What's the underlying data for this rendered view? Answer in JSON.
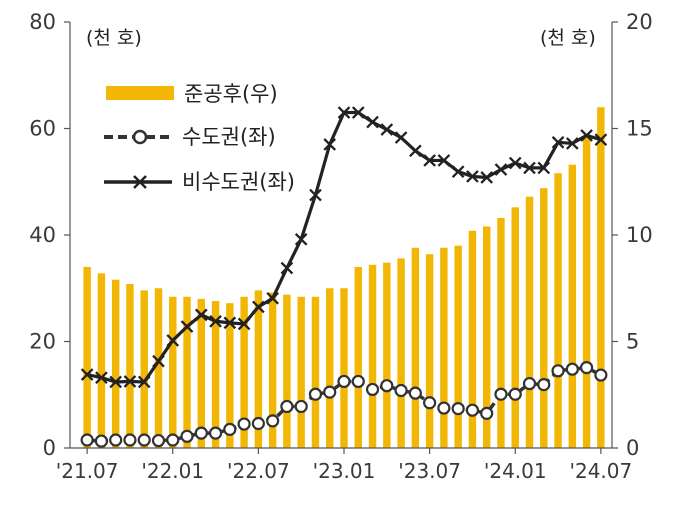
{
  "chart_data": {
    "type": "bar+line",
    "unit_left": "(천 호)",
    "unit_right": "(천 호)",
    "x": [
      "'21.07",
      "'21.08",
      "'21.09",
      "'21.10",
      "'21.11",
      "'21.12",
      "'22.01",
      "'22.02",
      "'22.03",
      "'22.04",
      "'22.05",
      "'22.06",
      "'22.07",
      "'22.08",
      "'22.09",
      "'22.10",
      "'22.11",
      "'22.12",
      "'23.01",
      "'23.02",
      "'23.03",
      "'23.04",
      "'23.05",
      "'23.06",
      "'23.07",
      "'23.08",
      "'23.09",
      "'23.10",
      "'23.11",
      "'23.12",
      "'24.01",
      "'24.02",
      "'24.03",
      "'24.04",
      "'24.05",
      "'24.06",
      "'24.07"
    ],
    "x_tick_labels": [
      "'21.07",
      "'22.01",
      "'22.07",
      "'23.01",
      "'23.07",
      "'24.01",
      "'24.07"
    ],
    "left_axis": {
      "min": 0,
      "max": 80,
      "ticks": [
        0,
        20,
        40,
        60,
        80
      ]
    },
    "right_axis": {
      "min": 0,
      "max": 20,
      "ticks": [
        0,
        5,
        10,
        15,
        20
      ]
    },
    "legend": {
      "position": "top-left"
    },
    "grid": false,
    "series": [
      {
        "name": "준공후(우)",
        "kind": "bar",
        "axis": "right",
        "color": "#f2b705",
        "values": [
          8.5,
          8.2,
          7.9,
          7.7,
          7.4,
          7.5,
          7.1,
          7.1,
          7.0,
          6.9,
          6.8,
          7.1,
          7.4,
          7.3,
          7.2,
          7.1,
          7.1,
          7.5,
          7.5,
          8.5,
          8.6,
          8.7,
          8.9,
          9.4,
          9.1,
          9.4,
          9.5,
          10.2,
          10.4,
          10.8,
          11.3,
          11.8,
          12.2,
          12.9,
          13.3,
          14.6,
          16.0
        ]
      },
      {
        "name": "수도권(좌)",
        "kind": "line",
        "axis": "left",
        "color": "#333333",
        "marker": "circle",
        "dash": true,
        "values": [
          1.5,
          1.3,
          1.5,
          1.5,
          1.5,
          1.4,
          1.5,
          2.2,
          2.8,
          2.8,
          3.5,
          4.5,
          4.6,
          5.1,
          7.8,
          7.8,
          10.1,
          10.5,
          12.5,
          12.5,
          11.0,
          11.7,
          10.8,
          10.3,
          8.5,
          7.5,
          7.4,
          7.1,
          6.5,
          10.1,
          10.1,
          12.1,
          11.9,
          14.5,
          14.8,
          15.1,
          13.7
        ]
      },
      {
        "name": "비수도권(좌)",
        "kind": "line",
        "axis": "left",
        "color": "#222222",
        "marker": "x",
        "dash": false,
        "values": [
          13.8,
          13.2,
          12.4,
          12.5,
          12.4,
          16.3,
          20.2,
          22.8,
          25.0,
          23.8,
          23.5,
          23.3,
          26.5,
          28.1,
          33.8,
          39.2,
          47.5,
          57.0,
          63.0,
          63.0,
          61.2,
          59.8,
          58.3,
          55.8,
          54.0,
          54.0,
          51.9,
          51.0,
          50.8,
          52.3,
          53.5,
          52.6,
          52.6,
          57.4,
          57.2,
          58.7,
          57.9
        ]
      }
    ]
  }
}
